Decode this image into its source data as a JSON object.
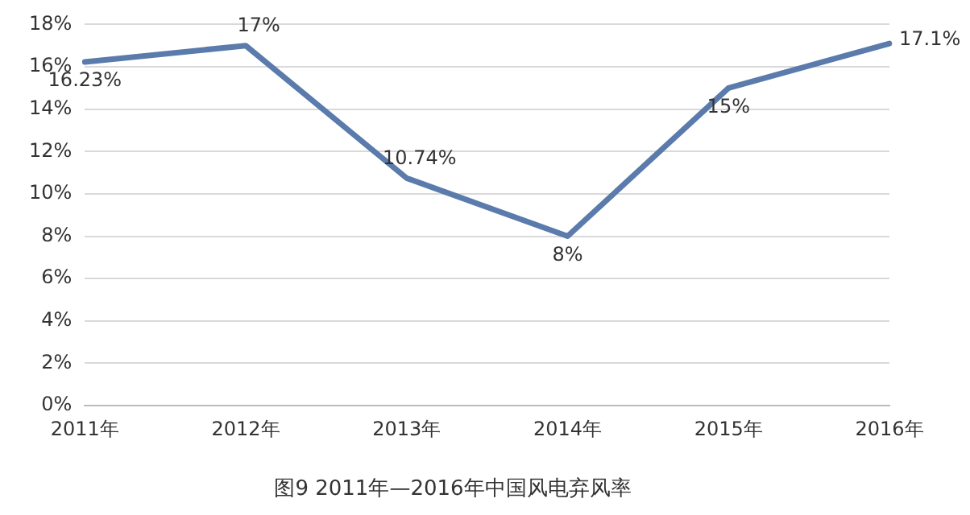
{
  "chart_data": {
    "type": "line",
    "title": "图9 2011年—2016年中国风电弃风率",
    "categories": [
      "2011年",
      "2012年",
      "2013年",
      "2014年",
      "2015年",
      "2016年"
    ],
    "values": [
      16.23,
      17,
      10.74,
      8,
      15,
      17.1
    ],
    "value_labels": [
      "16.23%",
      "17%",
      "10.74%",
      "8%",
      "15%",
      "17.1%"
    ],
    "color": "#5a7bab",
    "marker": "none",
    "line_style": "solid",
    "grid": "y",
    "legend": false,
    "ylim": [
      0,
      18
    ],
    "yticks": [
      {
        "value": 0,
        "label": "0%"
      },
      {
        "value": 2,
        "label": "2%"
      },
      {
        "value": 4,
        "label": "4%"
      },
      {
        "value": 6,
        "label": "6%"
      },
      {
        "value": 8,
        "label": "8%"
      },
      {
        "value": 10,
        "label": "10%"
      },
      {
        "value": 12,
        "label": "12%"
      },
      {
        "value": 14,
        "label": "14%"
      },
      {
        "value": 16,
        "label": "16%"
      },
      {
        "value": 18,
        "label": "18%"
      }
    ]
  }
}
